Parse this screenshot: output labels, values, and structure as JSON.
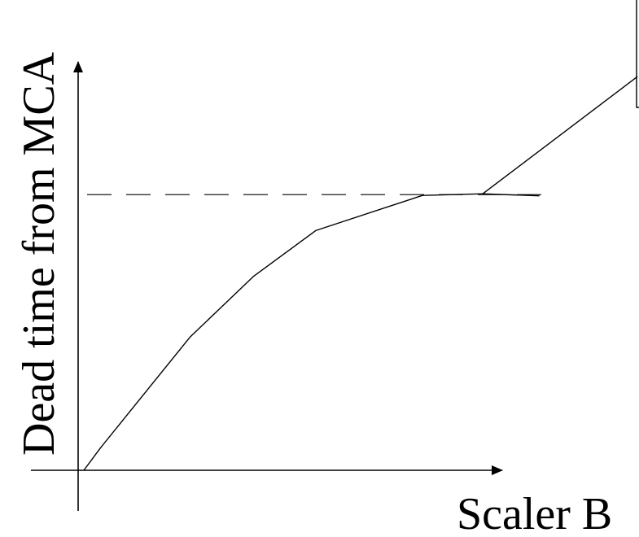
{
  "chart_data": {
    "type": "line",
    "xlabel": "Scaler B",
    "ylabel": "Dead time from MCA",
    "grid": false,
    "ticks": false,
    "x_axis_arrow": true,
    "y_axis_arrow": true,
    "reference_line": {
      "style": "dashed",
      "y": 0.7
    },
    "series": [
      {
        "x": [
          0.0,
          0.041,
          0.266,
          0.426,
          0.582,
          0.849,
          1.0
        ],
        "y": [
          0.0,
          0.056,
          0.338,
          0.493,
          0.609,
          0.698,
          0.702
        ]
      },
      {
        "x": [
          1.0,
          1.141
        ],
        "y": [
          0.702,
          0.697
        ]
      },
      {
        "x": [
          1.0,
          1.387
        ],
        "y": [
          0.702,
          0.999
        ]
      }
    ],
    "colors": {
      "line": "#000000",
      "axis": "#000000",
      "background": "#ffffff"
    }
  }
}
